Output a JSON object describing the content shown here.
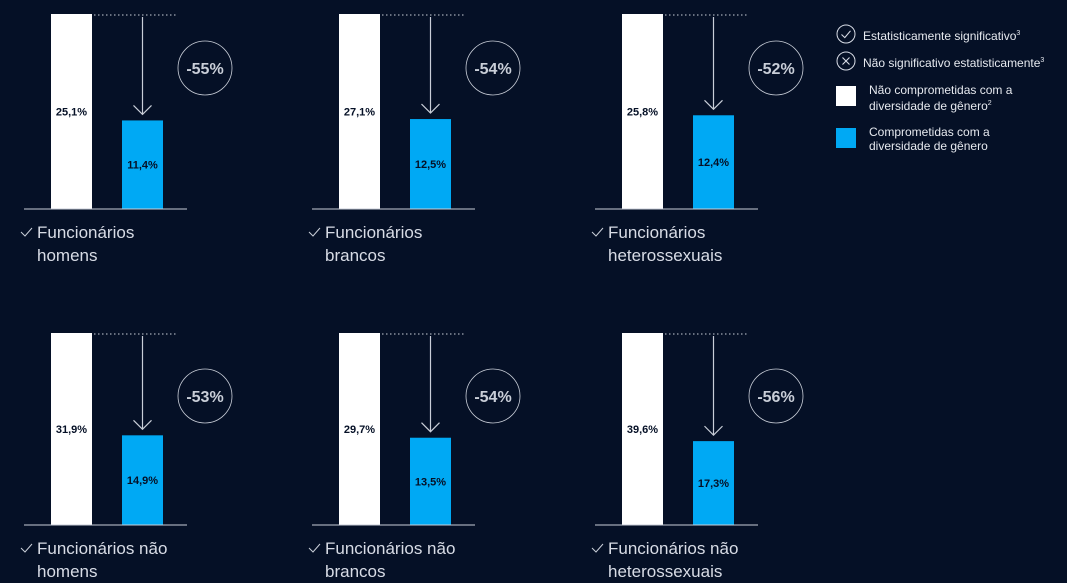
{
  "colors": {
    "background": "#051026",
    "before_bar": "#ffffff",
    "after_bar": "#00a9f4",
    "axis": "#c9ced8"
  },
  "legend": {
    "significant": {
      "label": "Estatisticamente significativo",
      "sup": "3",
      "icon": "check-circle-icon"
    },
    "not_significant": {
      "label": "Não significativo estatisticamente",
      "sup": "3",
      "icon": "x-circle-icon"
    },
    "not_committed": {
      "label": "Não comprometidas com a diversidade de gênero",
      "sup": "2"
    },
    "committed": {
      "label": "Comprometidas com a diversidade de gênero"
    }
  },
  "chart_data": [
    {
      "type": "bar",
      "label_line1": "Funcionários",
      "label_line2": "homens",
      "significance": "significant",
      "series": [
        {
          "name": "Não comprometidas com a diversidade de gênero",
          "value": 25.1,
          "text": "25,1%"
        },
        {
          "name": "Comprometidas com a diversidade de gênero",
          "value": 11.4,
          "text": "11,4%"
        }
      ],
      "change": "-55%"
    },
    {
      "type": "bar",
      "label_line1": "Funcionários",
      "label_line2": "brancos",
      "significance": "significant",
      "series": [
        {
          "name": "Não comprometidas com a diversidade de gênero",
          "value": 27.1,
          "text": "27,1%"
        },
        {
          "name": "Comprometidas com a diversidade de gênero",
          "value": 12.5,
          "text": "12,5%"
        }
      ],
      "change": "-54%"
    },
    {
      "type": "bar",
      "label_line1": "Funcionários",
      "label_line2": "heterossexuais",
      "significance": "significant",
      "series": [
        {
          "name": "Não comprometidas com a diversidade de gênero",
          "value": 25.8,
          "text": "25,8%"
        },
        {
          "name": "Comprometidas com a diversidade de gênero",
          "value": 12.4,
          "text": "12,4%"
        }
      ],
      "change": "-52%"
    },
    {
      "type": "bar",
      "label_line1": "Funcionários não",
      "label_line2": "homens",
      "significance": "significant",
      "series": [
        {
          "name": "Não comprometidas com a diversidade de gênero",
          "value": 31.9,
          "text": "31,9%"
        },
        {
          "name": "Comprometidas com a diversidade de gênero",
          "value": 14.9,
          "text": "14,9%"
        }
      ],
      "change": "-53%"
    },
    {
      "type": "bar",
      "label_line1": "Funcionários não",
      "label_line2": "brancos",
      "significance": "significant",
      "series": [
        {
          "name": "Não comprometidas com a diversidade de gênero",
          "value": 29.7,
          "text": "29,7%"
        },
        {
          "name": "Comprometidas com a diversidade de gênero",
          "value": 13.5,
          "text": "13,5%"
        }
      ],
      "change": "-54%"
    },
    {
      "type": "bar",
      "label_line1": "Funcionários não",
      "label_line2": "heterossexuais",
      "significance": "significant",
      "series": [
        {
          "name": "Não comprometidas com a diversidade de gênero",
          "value": 39.6,
          "text": "39,6%"
        },
        {
          "name": "Comprometidas com a diversidade de gênero",
          "value": 17.3,
          "text": "17,3%"
        }
      ],
      "change": "-56%"
    }
  ]
}
